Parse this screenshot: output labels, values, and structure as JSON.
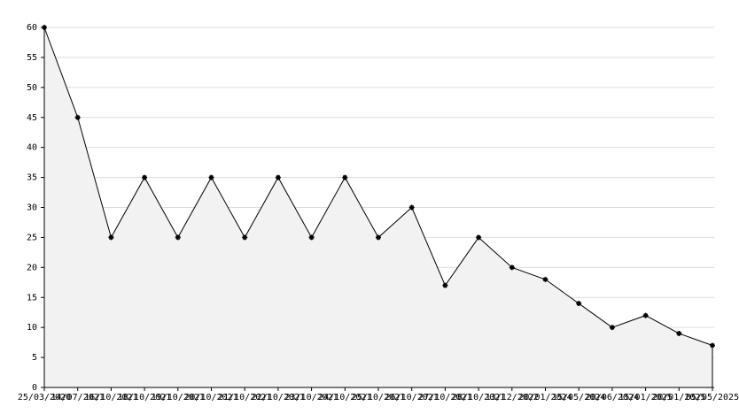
{
  "chart_data": {
    "type": "area",
    "x": [
      "25/03/2020",
      "14/07/2021",
      "16/10/2021",
      "18/10/2021",
      "19/10/2021",
      "20/10/2021",
      "21/10/2021",
      "22/10/2021",
      "23/10/2021",
      "24/10/2021",
      "25/10/2021",
      "26/10/2021",
      "27/10/2021",
      "28/10/2021",
      "13/12/2022",
      "20/01/2024",
      "15/05/2024",
      "20/06/2024",
      "15/01/2025",
      "20/01/2025",
      "05/05/2025"
    ],
    "values": [
      60,
      45,
      25,
      35,
      25,
      35,
      25,
      35,
      25,
      35,
      25,
      30,
      17,
      25,
      20,
      18,
      14,
      10,
      12,
      9,
      7
    ],
    "color": "#000000",
    "fill": "#f2f2f2",
    "ylim": [
      0,
      60
    ],
    "yticks": [
      0,
      5,
      10,
      15,
      20,
      25,
      30,
      35,
      40,
      45,
      50,
      55,
      60
    ],
    "grid": true
  }
}
